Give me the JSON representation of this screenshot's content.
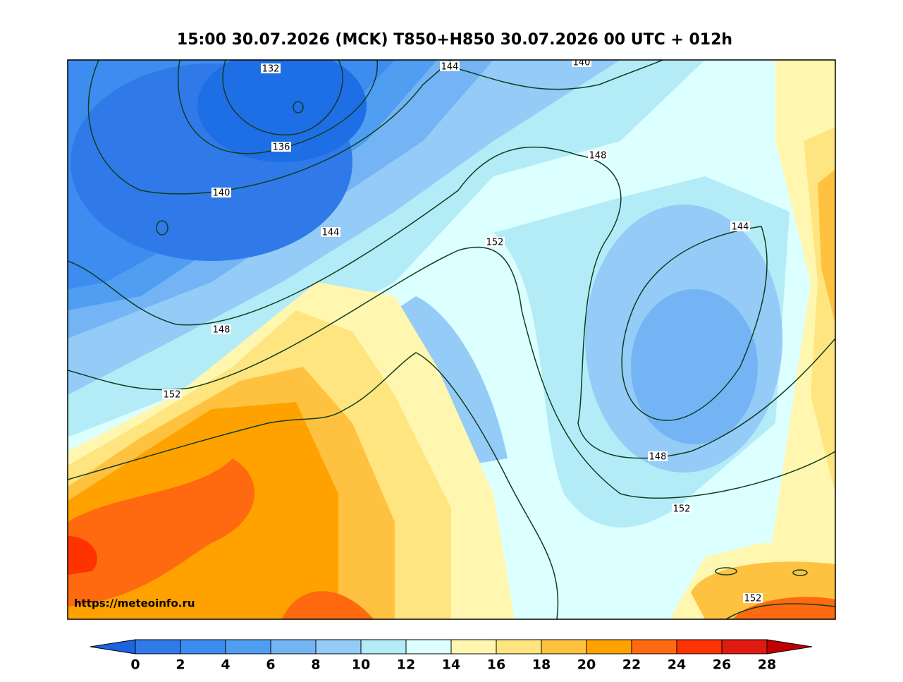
{
  "title": "15:00 30.07.2026 (MCK) T850+H850 30.07.2026 00 UTC + 012h",
  "watermark": "https://meteoinfo.ru",
  "contour_labels": [
    132,
    144,
    140,
    136,
    148,
    140,
    144,
    152,
    144,
    148,
    152,
    148,
    152,
    152
  ],
  "colorbar": {
    "ticks": [
      0,
      2,
      4,
      6,
      8,
      10,
      12,
      14,
      16,
      18,
      20,
      22,
      24,
      26,
      28
    ],
    "colors": [
      "#2f7ae8",
      "#3d8cf0",
      "#4f9ef2",
      "#74b4f5",
      "#95cbf7",
      "#b3ecf7",
      "#dcffff",
      "#fff7b0",
      "#ffe57f",
      "#ffc240",
      "#ffa200",
      "#ff6a10",
      "#ff3300",
      "#e01a10"
    ],
    "under_color": "#1a64e0",
    "over_color": "#c00000"
  }
}
